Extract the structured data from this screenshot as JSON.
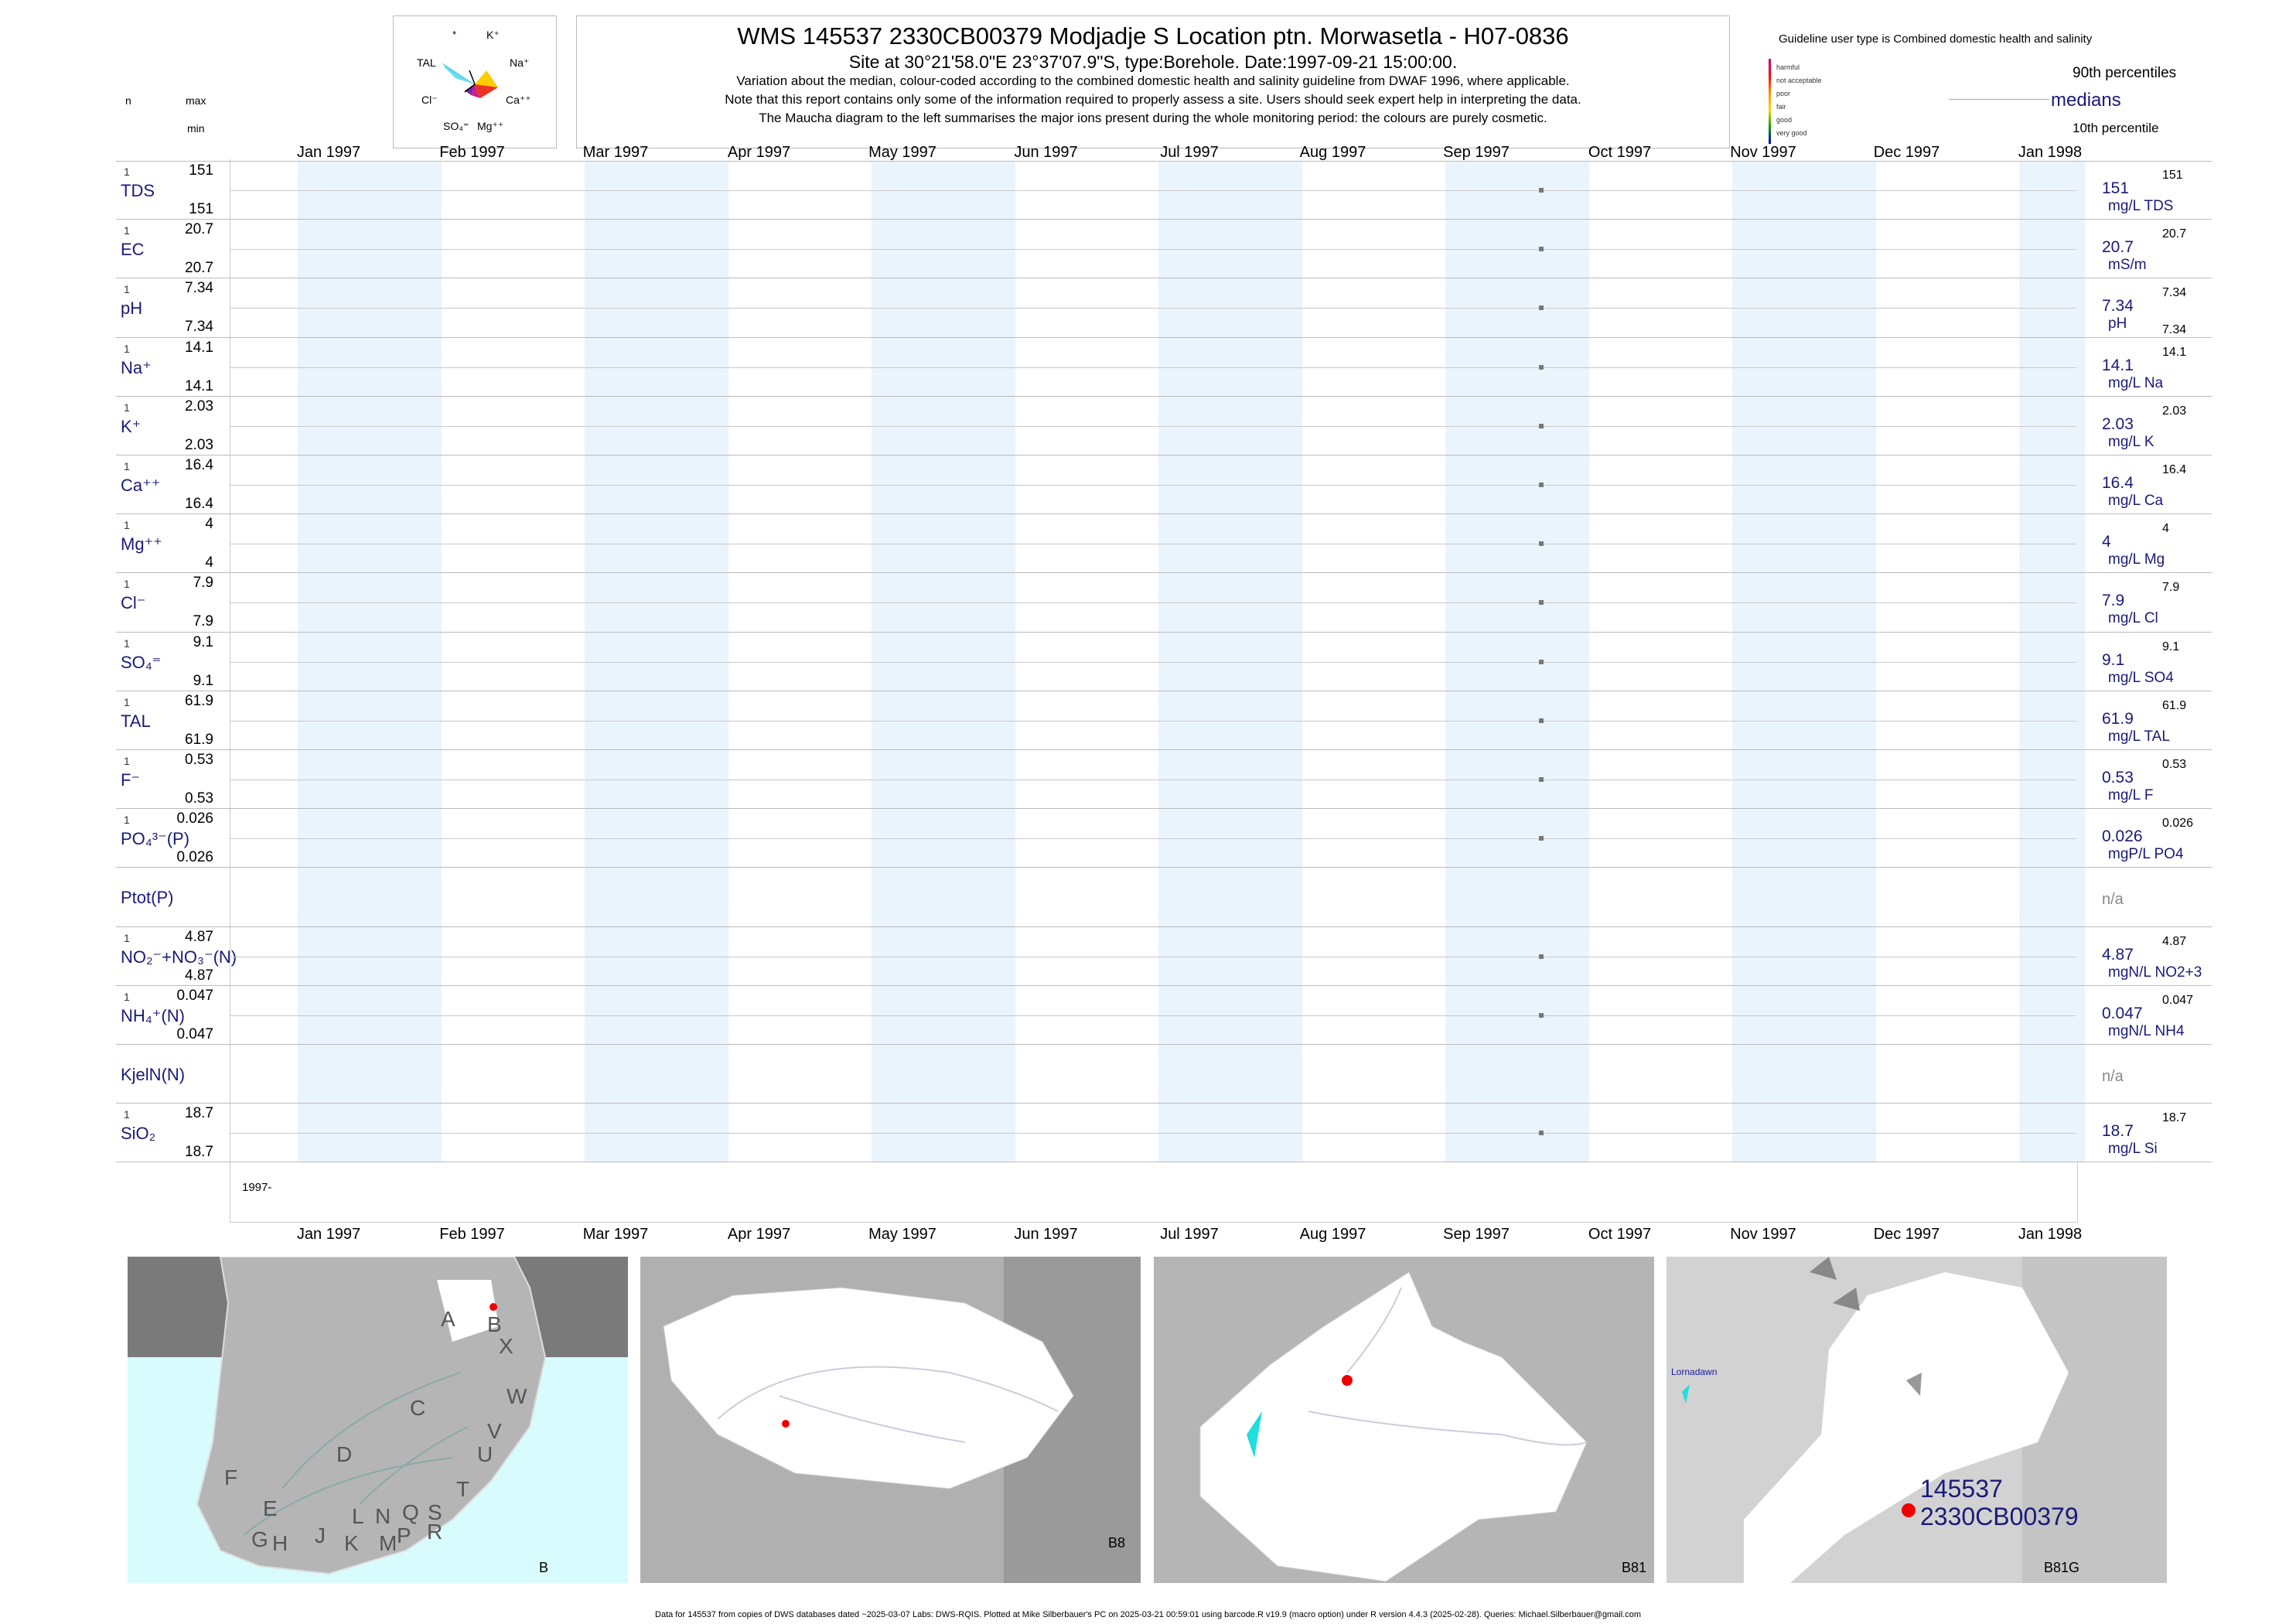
{
  "header": {
    "title": "WMS 145537 2330CB00379 Modjadje S Location ptn. Morwasetla - H07-0836",
    "subtitle": "Site at 30°21'58.0\"E 23°37'07.9\"S, type:Borehole. Date:1997-09-21 15:00:00.",
    "note1": "Variation about the median,  colour-coded according to the combined domestic health and salinity guideline from DWAF 1996, where applicable.",
    "note2": "Note that this report contains only some of the information required to properly assess a site. Users should seek expert help in interpreting the data.",
    "note3": "The Maucha diagram to the left summarises the major ions present during the whole monitoring period: the colours are purely cosmetic."
  },
  "maucha": {
    "labels": [
      "*",
      "K⁺",
      "Na⁺",
      "Ca⁺⁺",
      "Mg⁺⁺",
      "SO₄⁼",
      "Cl⁻",
      "TAL"
    ]
  },
  "left_header": {
    "n": "n",
    "max": "max",
    "min": "min"
  },
  "legend": {
    "guideline_text": "Guideline user type is Combined domestic health and salinity",
    "classes": [
      "harmful",
      "not acceptable",
      "poor",
      "fair",
      "good",
      "very good"
    ],
    "class_colors": [
      "#c00080",
      "#ff0000",
      "#ff8c00",
      "#ffd700",
      "#00a000",
      "#0000c0"
    ],
    "p90": "90th percentiles",
    "medians": "medians",
    "p10": "10th percentile"
  },
  "months": [
    "Jan 1997",
    "Feb 1997",
    "Mar 1997",
    "Apr 1997",
    "May 1997",
    "Jun 1997",
    "Jul 1997",
    "Aug 1997",
    "Sep 1997",
    "Oct 1997",
    "Nov 1997",
    "Dec 1997",
    "Jan 1998"
  ],
  "year_label": "1997-",
  "chart_data": {
    "type": "scatter",
    "x_axis": "date",
    "xlim": [
      "1997-01-01",
      "1998-01-01"
    ],
    "sample_date": "1997-09-21",
    "parameters": [
      {
        "label": "TDS",
        "n": "1",
        "max": "151",
        "min": "151",
        "median": "151",
        "unit": "mg/L TDS",
        "p90": "151",
        "p10": ""
      },
      {
        "label": "EC",
        "n": "1",
        "max": "20.7",
        "min": "20.7",
        "median": "20.7",
        "unit": "mS/m",
        "p90": "20.7",
        "p10": ""
      },
      {
        "label": "pH",
        "n": "1",
        "max": "7.34",
        "min": "7.34",
        "median": "7.34",
        "unit": "pH",
        "p90": "7.34",
        "p10": "7.34"
      },
      {
        "label": "Na⁺",
        "n": "1",
        "max": "14.1",
        "min": "14.1",
        "median": "14.1",
        "unit": "mg/L Na",
        "p90": "14.1",
        "p10": ""
      },
      {
        "label": "K⁺",
        "n": "1",
        "max": "2.03",
        "min": "2.03",
        "median": "2.03",
        "unit": "mg/L K",
        "p90": "2.03",
        "p10": ""
      },
      {
        "label": "Ca⁺⁺",
        "n": "1",
        "max": "16.4",
        "min": "16.4",
        "median": "16.4",
        "unit": "mg/L Ca",
        "p90": "16.4",
        "p10": ""
      },
      {
        "label": "Mg⁺⁺",
        "n": "1",
        "max": "4",
        "min": "4",
        "median": "4",
        "unit": "mg/L Mg",
        "p90": "4",
        "p10": ""
      },
      {
        "label": "Cl⁻",
        "n": "1",
        "max": "7.9",
        "min": "7.9",
        "median": "7.9",
        "unit": "mg/L Cl",
        "p90": "7.9",
        "p10": ""
      },
      {
        "label": "SO₄⁼",
        "n": "1",
        "max": "9.1",
        "min": "9.1",
        "median": "9.1",
        "unit": "mg/L SO4",
        "p90": "9.1",
        "p10": ""
      },
      {
        "label": "TAL",
        "n": "1",
        "max": "61.9",
        "min": "61.9",
        "median": "61.9",
        "unit": "mg/L TAL",
        "p90": "61.9",
        "p10": ""
      },
      {
        "label": "F⁻",
        "n": "1",
        "max": "0.53",
        "min": "0.53",
        "median": "0.53",
        "unit": "mg/L F",
        "p90": "0.53",
        "p10": ""
      },
      {
        "label": "PO₄³⁻(P)",
        "n": "1",
        "max": "0.026",
        "min": "0.026",
        "median": "0.026",
        "unit": "mgP/L PO4",
        "p90": "0.026",
        "p10": ""
      },
      {
        "label": "Ptot(P)",
        "n": "",
        "max": "",
        "min": "",
        "median": "n/a",
        "unit": "",
        "p90": "",
        "p10": ""
      },
      {
        "label": "NO₂⁻+NO₃⁻(N)",
        "n": "1",
        "max": "4.87",
        "min": "4.87",
        "median": "4.87",
        "unit": "mgN/L NO2+3",
        "p90": "4.87",
        "p10": ""
      },
      {
        "label": "NH₄⁺(N)",
        "n": "1",
        "max": "0.047",
        "min": "0.047",
        "median": "0.047",
        "unit": "mgN/L NH4",
        "p90": "0.047",
        "p10": ""
      },
      {
        "label": "KjelN(N)",
        "n": "",
        "max": "",
        "min": "",
        "median": "n/a",
        "unit": "",
        "p90": "",
        "p10": ""
      },
      {
        "label": "SiO₂",
        "n": "1",
        "max": "18.7",
        "min": "18.7",
        "median": "18.7",
        "unit": "mg/L Si",
        "p90": "18.7",
        "p10": ""
      }
    ]
  },
  "maps": {
    "labels": [
      "B",
      "B8",
      "B81",
      "B81G"
    ],
    "letters": [
      "A",
      "B",
      "X",
      "W",
      "C",
      "D",
      "V",
      "U",
      "T",
      "F",
      "E",
      "G",
      "H",
      "J",
      "K",
      "L",
      "N",
      "M",
      "Q",
      "P",
      "S",
      "R"
    ],
    "town": "Lornadawn",
    "site_id": "145537",
    "site_code": "2330CB00379"
  },
  "footer": "Data for 145537 from copies of DWS databases dated ~2025-03-07 Labs: DWS-RQIS. Plotted at Mike Silberbauer's PC on 2025-03-21 00:59:01 using barcode.R v19.9 (macro option) under R version 4.4.3 (2025-02-28). Queries: Michael.Silberbauer@gmail.com"
}
